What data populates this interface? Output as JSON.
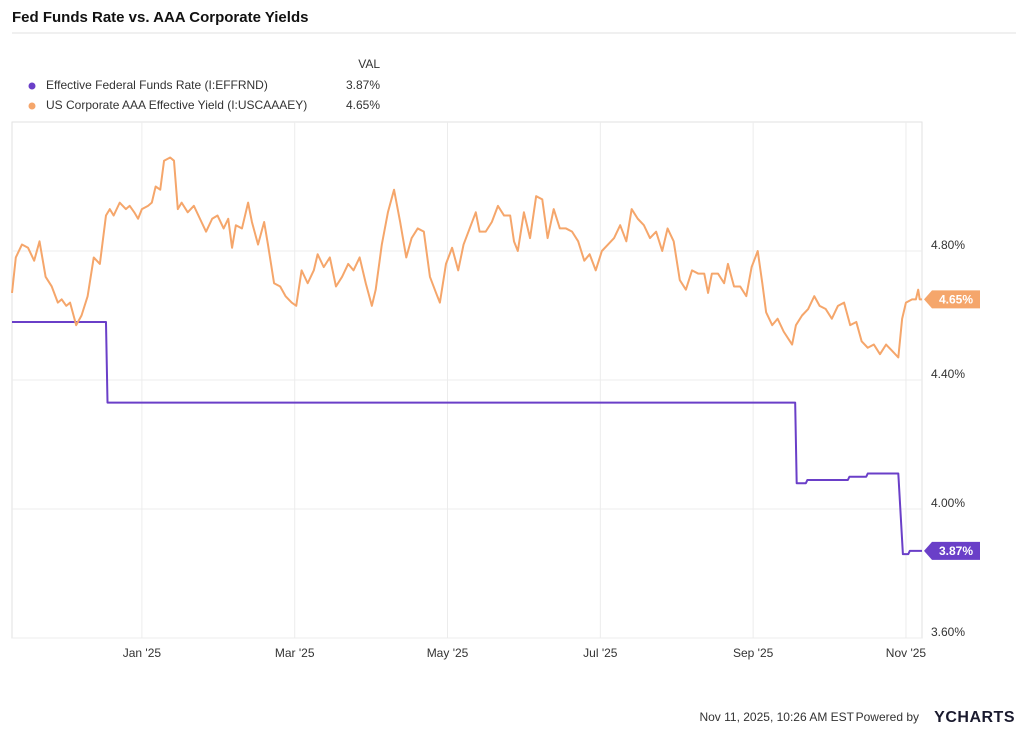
{
  "chart_data": {
    "type": "line",
    "title": "Fed Funds Rate vs. AAA Corporate Yields",
    "legend_header": "VAL",
    "xlim": [
      -1.7,
      10.21
    ],
    "xticks": [
      {
        "value": 0,
        "label": "Jan '25"
      },
      {
        "value": 2,
        "label": "Mar '25"
      },
      {
        "value": 4,
        "label": "May '25"
      },
      {
        "value": 6,
        "label": "Jul '25"
      },
      {
        "value": 8,
        "label": "Sep '25"
      },
      {
        "value": 10,
        "label": "Nov '25"
      }
    ],
    "ylim": [
      3.6,
      5.2
    ],
    "yticks": [
      {
        "value": 3.6,
        "label": "3.60%"
      },
      {
        "value": 4.0,
        "label": "4.00%"
      },
      {
        "value": 4.4,
        "label": "4.40%"
      },
      {
        "value": 4.8,
        "label": "4.80%"
      }
    ],
    "grid": true,
    "series": [
      {
        "name": "Effective Federal Funds Rate (I:EFFRND)",
        "color": "#6a3fc8",
        "last": {
          "value": 3.87,
          "label": "3.87%"
        },
        "x": [
          -1.7,
          -0.47,
          -0.45,
          8.55,
          8.57,
          8.69,
          8.71,
          9.24,
          9.26,
          9.48,
          9.5,
          9.9,
          9.96,
          10.03,
          10.05,
          10.21
        ],
        "values": [
          4.58,
          4.58,
          4.33,
          4.33,
          4.08,
          4.08,
          4.09,
          4.09,
          4.1,
          4.1,
          4.11,
          4.11,
          3.86,
          3.86,
          3.87,
          3.87
        ]
      },
      {
        "name": "US Corporate AAA Effective Yield (I:USCAAAEY)",
        "color": "#f5a66b",
        "last": {
          "value": 4.65,
          "label": "4.65%"
        },
        "x": [
          -1.7,
          -1.65,
          -1.57,
          -1.49,
          -1.41,
          -1.34,
          -1.26,
          -1.18,
          -1.1,
          -1.05,
          -0.99,
          -0.94,
          -0.86,
          -0.79,
          -0.71,
          -0.63,
          -0.55,
          -0.47,
          -0.42,
          -0.37,
          -0.29,
          -0.21,
          -0.16,
          -0.1,
          -0.05,
          0,
          0.08,
          0.13,
          0.18,
          0.24,
          0.29,
          0.37,
          0.42,
          0.47,
          0.52,
          0.6,
          0.68,
          0.76,
          0.84,
          0.92,
          0.99,
          1.07,
          1.13,
          1.18,
          1.23,
          1.31,
          1.39,
          1.44,
          1.52,
          1.6,
          1.65,
          1.73,
          1.81,
          1.88,
          1.96,
          2.02,
          2.09,
          2.17,
          2.25,
          2.3,
          2.38,
          2.46,
          2.54,
          2.62,
          2.7,
          2.77,
          2.85,
          2.93,
          3.01,
          3.06,
          3.14,
          3.22,
          3.3,
          3.38,
          3.46,
          3.53,
          3.61,
          3.69,
          3.77,
          3.85,
          3.9,
          3.98,
          4.06,
          4.14,
          4.21,
          4.29,
          4.37,
          4.42,
          4.5,
          4.58,
          4.66,
          4.74,
          4.82,
          4.87,
          4.92,
          5.0,
          5.08,
          5.16,
          5.24,
          5.31,
          5.39,
          5.47,
          5.55,
          5.63,
          5.71,
          5.79,
          5.86,
          5.94,
          6.02,
          6.1,
          6.18,
          6.26,
          6.34,
          6.41,
          6.49,
          6.57,
          6.65,
          6.73,
          6.81,
          6.88,
          6.96,
          7.04,
          7.12,
          7.2,
          7.28,
          7.36,
          7.41,
          7.46,
          7.54,
          7.62,
          7.67,
          7.75,
          7.83,
          7.91,
          7.98,
          8.06,
          8.12,
          8.17,
          8.25,
          8.32,
          8.4,
          8.51,
          8.56,
          8.64,
          8.72,
          8.8,
          8.87,
          8.95,
          9.03,
          9.11,
          9.19,
          9.27,
          9.35,
          9.42,
          9.5,
          9.58,
          9.66,
          9.74,
          9.82,
          9.9,
          9.95,
          10.0,
          10.08,
          10.13,
          10.16,
          10.18,
          10.21
        ],
        "values": [
          4.67,
          4.78,
          4.82,
          4.81,
          4.77,
          4.83,
          4.72,
          4.69,
          4.64,
          4.65,
          4.63,
          4.64,
          4.57,
          4.6,
          4.66,
          4.78,
          4.76,
          4.91,
          4.93,
          4.91,
          4.95,
          4.93,
          4.94,
          4.92,
          4.9,
          4.93,
          4.94,
          4.95,
          5.0,
          4.99,
          5.08,
          5.09,
          5.08,
          4.93,
          4.95,
          4.92,
          4.94,
          4.9,
          4.86,
          4.9,
          4.91,
          4.87,
          4.9,
          4.81,
          4.88,
          4.87,
          4.95,
          4.89,
          4.82,
          4.89,
          4.82,
          4.7,
          4.69,
          4.66,
          4.64,
          4.63,
          4.74,
          4.7,
          4.74,
          4.79,
          4.75,
          4.78,
          4.69,
          4.72,
          4.76,
          4.74,
          4.78,
          4.7,
          4.63,
          4.68,
          4.82,
          4.92,
          4.99,
          4.89,
          4.78,
          4.84,
          4.87,
          4.86,
          4.72,
          4.67,
          4.64,
          4.76,
          4.81,
          4.74,
          4.82,
          4.87,
          4.92,
          4.86,
          4.86,
          4.89,
          4.94,
          4.91,
          4.91,
          4.83,
          4.8,
          4.92,
          4.84,
          4.97,
          4.96,
          4.84,
          4.93,
          4.87,
          4.87,
          4.86,
          4.83,
          4.77,
          4.79,
          4.74,
          4.8,
          4.82,
          4.84,
          4.88,
          4.83,
          4.93,
          4.9,
          4.88,
          4.84,
          4.86,
          4.8,
          4.87,
          4.83,
          4.71,
          4.68,
          4.74,
          4.73,
          4.73,
          4.67,
          4.73,
          4.73,
          4.7,
          4.76,
          4.69,
          4.69,
          4.66,
          4.75,
          4.8,
          4.7,
          4.61,
          4.57,
          4.59,
          4.55,
          4.51,
          4.57,
          4.6,
          4.62,
          4.66,
          4.63,
          4.62,
          4.59,
          4.63,
          4.64,
          4.57,
          4.58,
          4.52,
          4.5,
          4.51,
          4.48,
          4.51,
          4.49,
          4.47,
          4.59,
          4.64,
          4.65,
          4.65,
          4.68,
          4.65,
          4.65
        ]
      }
    ],
    "footer": {
      "timestamp": "Nov 11, 2025, 10:26 AM EST",
      "powered_by": "Powered by",
      "brand": "YCHARTS"
    }
  }
}
